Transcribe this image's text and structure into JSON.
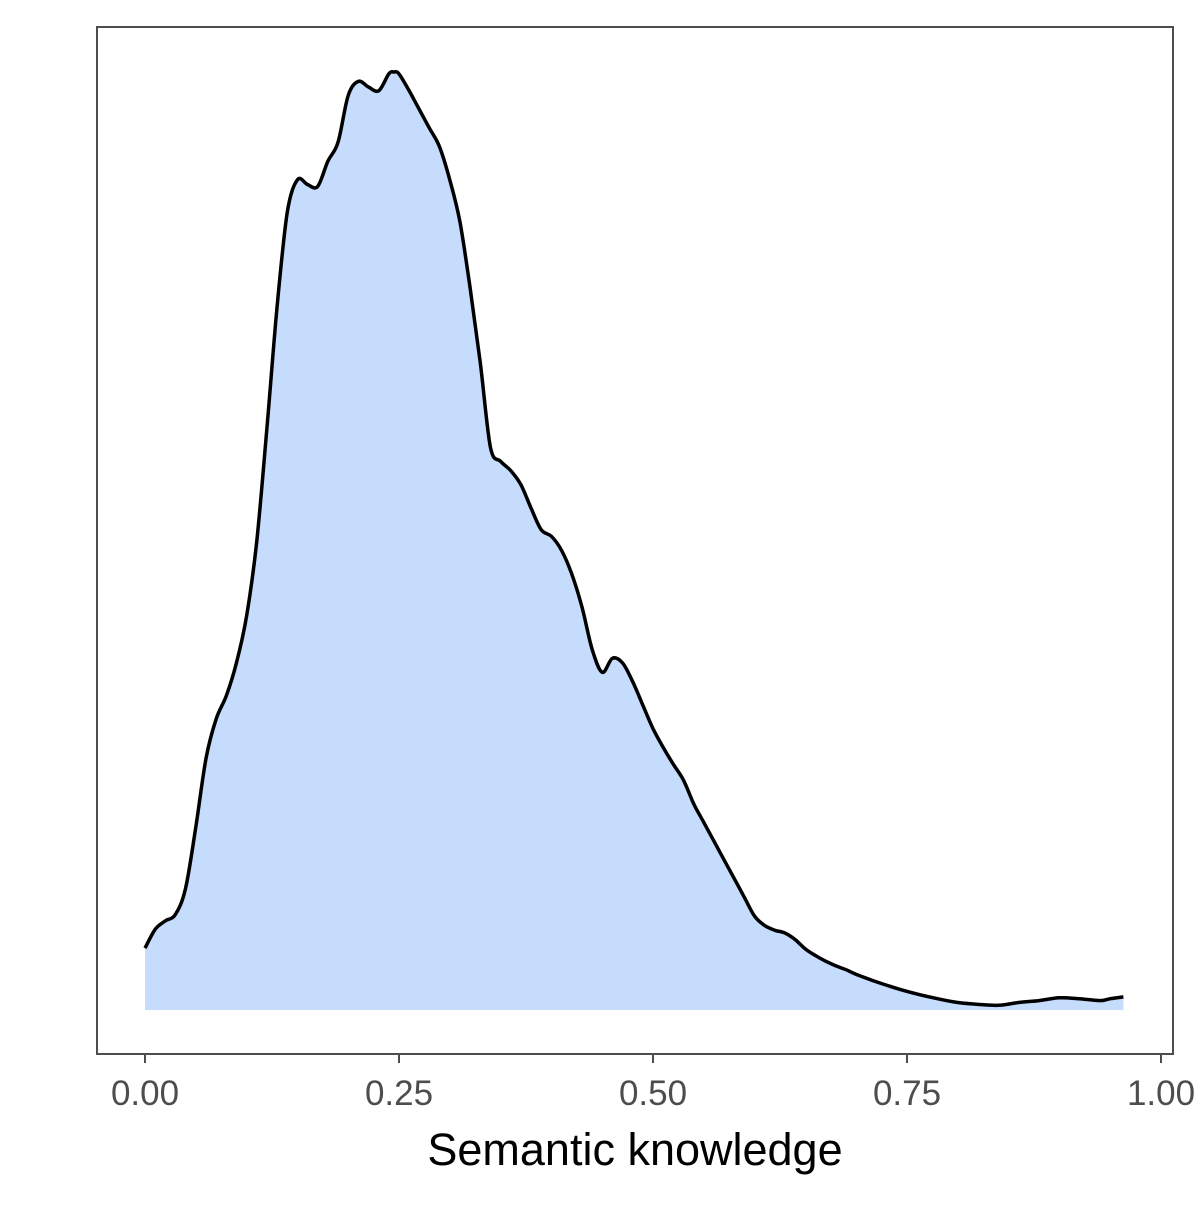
{
  "chart_data": {
    "type": "area",
    "subtype": "density",
    "title": "",
    "xlabel": "Semantic knowledge",
    "ylabel": "",
    "xlim": [
      -0.095,
      1.0
    ],
    "ylim": [
      0,
      1.0
    ],
    "x_ticks": [
      0.0,
      0.25,
      0.5,
      0.75,
      1.0
    ],
    "x_tick_labels": [
      "0.00",
      "0.25",
      "0.50",
      "0.75",
      "1.00"
    ],
    "y_ticks_shown": false,
    "grid": false,
    "legend": "none",
    "fill_color": "#c6dcfc",
    "line_color": "#000000",
    "frame_color": "#4d4d4d",
    "series": [
      {
        "x": [
          0.0,
          0.01,
          0.02,
          0.03,
          0.04,
          0.05,
          0.06,
          0.07,
          0.08,
          0.09,
          0.1,
          0.11,
          0.12,
          0.13,
          0.14,
          0.15,
          0.16,
          0.17,
          0.18,
          0.19,
          0.2,
          0.21,
          0.22,
          0.23,
          0.24,
          0.245,
          0.25,
          0.26,
          0.27,
          0.28,
          0.29,
          0.3,
          0.31,
          0.32,
          0.33,
          0.34,
          0.35,
          0.36,
          0.37,
          0.38,
          0.39,
          0.4,
          0.41,
          0.42,
          0.43,
          0.44,
          0.45,
          0.46,
          0.47,
          0.48,
          0.49,
          0.5,
          0.51,
          0.52,
          0.53,
          0.54,
          0.55,
          0.56,
          0.57,
          0.58,
          0.59,
          0.6,
          0.61,
          0.62,
          0.63,
          0.64,
          0.65,
          0.66,
          0.67,
          0.68,
          0.69,
          0.7,
          0.72,
          0.74,
          0.76,
          0.78,
          0.8,
          0.82,
          0.84,
          0.86,
          0.88,
          0.9,
          0.92,
          0.94,
          0.95,
          0.963
        ],
        "y": [
          0.066,
          0.086,
          0.095,
          0.102,
          0.13,
          0.195,
          0.268,
          0.31,
          0.335,
          0.37,
          0.42,
          0.5,
          0.62,
          0.75,
          0.85,
          0.885,
          0.88,
          0.878,
          0.905,
          0.925,
          0.975,
          0.99,
          0.984,
          0.98,
          0.998,
          1.0,
          0.998,
          0.98,
          0.96,
          0.94,
          0.92,
          0.885,
          0.84,
          0.77,
          0.69,
          0.6,
          0.585,
          0.575,
          0.56,
          0.535,
          0.512,
          0.505,
          0.49,
          0.465,
          0.43,
          0.385,
          0.36,
          0.375,
          0.37,
          0.35,
          0.325,
          0.3,
          0.28,
          0.262,
          0.245,
          0.22,
          0.2,
          0.18,
          0.16,
          0.14,
          0.12,
          0.1,
          0.09,
          0.085,
          0.082,
          0.075,
          0.065,
          0.058,
          0.052,
          0.047,
          0.043,
          0.038,
          0.03,
          0.023,
          0.017,
          0.012,
          0.008,
          0.006,
          0.005,
          0.008,
          0.01,
          0.013,
          0.012,
          0.01,
          0.012,
          0.014
        ]
      }
    ]
  }
}
